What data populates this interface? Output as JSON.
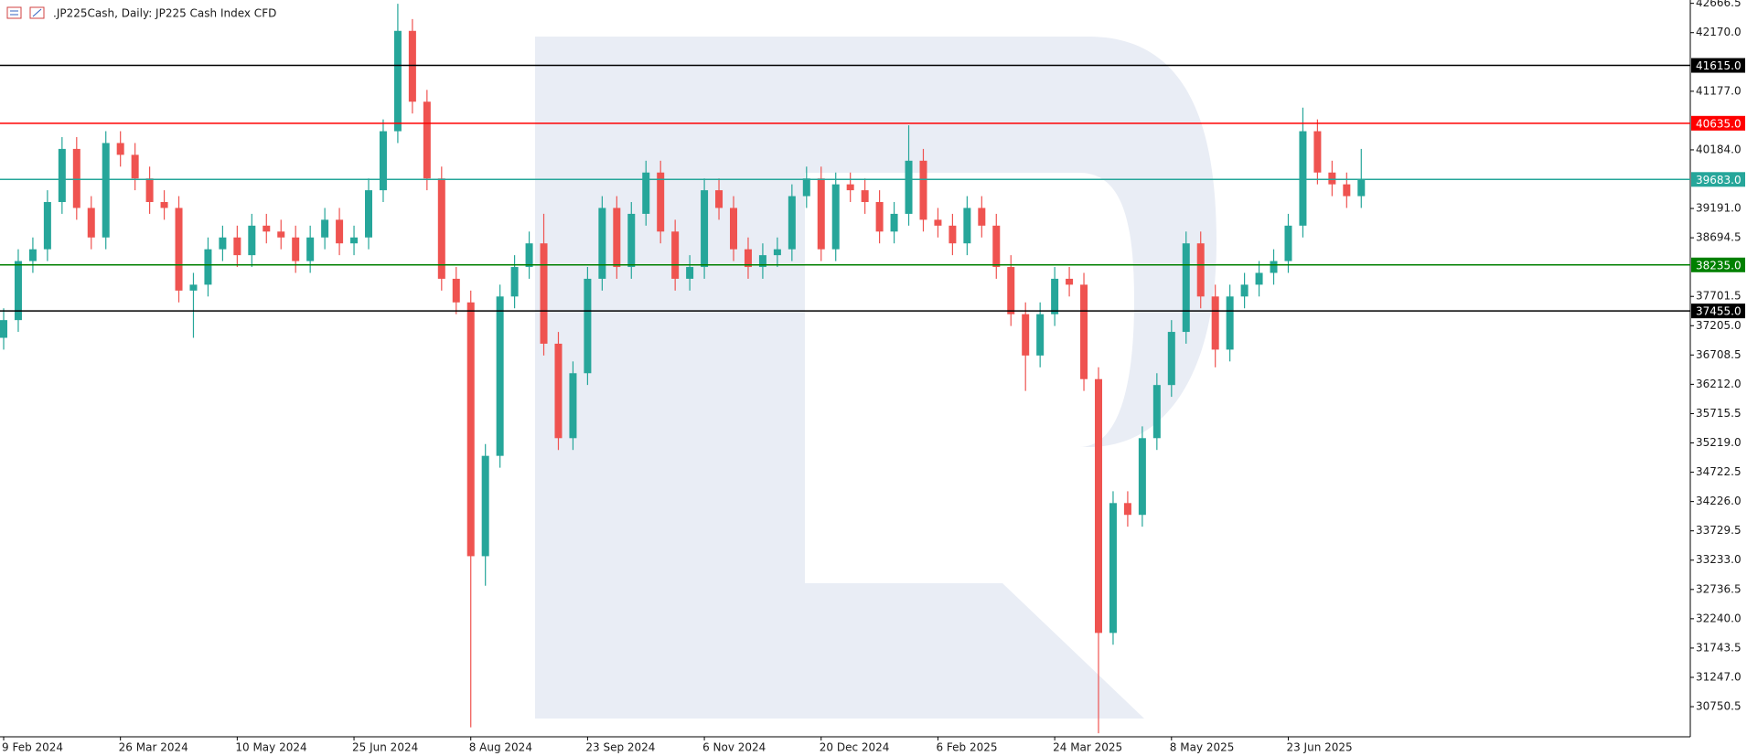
{
  "chart_data": {
    "type": "candlestick",
    "title": ".JP225Cash, Daily:  JP225 Cash Index CFD",
    "categories": [
      "9 Feb 2024",
      null,
      null,
      null,
      null,
      null,
      null,
      null,
      "26 Mar 2024",
      null,
      null,
      null,
      null,
      null,
      null,
      null,
      "10 May 2024",
      null,
      null,
      null,
      null,
      null,
      null,
      null,
      "25 Jun 2024",
      null,
      null,
      null,
      null,
      null,
      null,
      null,
      "8 Aug 2024",
      null,
      null,
      null,
      null,
      null,
      null,
      null,
      "23 Sep 2024",
      null,
      null,
      null,
      null,
      null,
      null,
      null,
      "6 Nov 2024",
      null,
      null,
      null,
      null,
      null,
      null,
      null,
      "20 Dec 2024",
      null,
      null,
      null,
      null,
      null,
      null,
      null,
      "6 Feb 2025",
      null,
      null,
      null,
      null,
      null,
      null,
      null,
      "24 Mar 2025",
      null,
      null,
      null,
      null,
      null,
      null,
      null,
      "8 May 2025",
      null,
      null,
      null,
      null,
      null,
      null,
      null,
      "23 Jun 2025",
      null,
      null,
      null,
      null,
      null
    ],
    "open": [
      37000,
      37300,
      38300,
      38500,
      39300,
      40200,
      39200,
      38700,
      40300,
      40100,
      39700,
      39300,
      39200,
      37800,
      37900,
      38500,
      38700,
      38400,
      38900,
      38800,
      38700,
      38300,
      38700,
      39000,
      38600,
      38700,
      39500,
      40500,
      42200,
      41000,
      39700,
      38000,
      37600,
      33300,
      35000,
      37700,
      38200,
      38600,
      36900,
      35300,
      36400,
      38000,
      39200,
      38200,
      39100,
      39800,
      38800,
      38000,
      38200,
      39500,
      39200,
      38500,
      38200,
      38400,
      38500,
      39400,
      39700,
      38500,
      39600,
      39500,
      39300,
      38800,
      39100,
      40000,
      39000,
      38900,
      38600,
      39200,
      38900,
      38200,
      37400,
      36700,
      37400,
      38000,
      37900,
      36300,
      32000,
      34200,
      34000,
      35300,
      36200,
      37100,
      38600,
      37700,
      36800,
      37700,
      37900,
      38100,
      38300,
      38900,
      40500,
      39800,
      39600,
      39400
    ],
    "high": [
      37500,
      38500,
      38700,
      39500,
      40400,
      40400,
      39400,
      40500,
      40500,
      40300,
      39900,
      39500,
      39400,
      38100,
      38700,
      38900,
      38900,
      39100,
      39100,
      39000,
      38900,
      38900,
      39200,
      39200,
      38900,
      39700,
      40700,
      42660,
      42400,
      41200,
      39900,
      38200,
      37800,
      35200,
      37900,
      38400,
      38800,
      39100,
      37100,
      36600,
      38200,
      39400,
      39400,
      39300,
      40000,
      40000,
      39000,
      38400,
      39700,
      39700,
      39400,
      38700,
      38600,
      38700,
      39600,
      39900,
      39900,
      39800,
      39800,
      39700,
      39500,
      39300,
      40600,
      40200,
      39200,
      39100,
      39400,
      39400,
      39100,
      38400,
      37600,
      37600,
      38200,
      38200,
      38100,
      36500,
      34400,
      34400,
      35500,
      36400,
      37300,
      38800,
      38800,
      37900,
      37900,
      38100,
      38300,
      38500,
      39100,
      40900,
      40700,
      40000,
      39800,
      40200
    ],
    "low": [
      36800,
      37100,
      38100,
      38300,
      39100,
      39000,
      38500,
      38500,
      39900,
      39500,
      39100,
      39000,
      37600,
      37000,
      37700,
      38300,
      38200,
      38200,
      38600,
      38500,
      38100,
      38100,
      38500,
      38400,
      38400,
      38500,
      39300,
      40300,
      40800,
      39500,
      37800,
      37400,
      30400,
      32800,
      34800,
      37500,
      38000,
      36700,
      35100,
      35100,
      36200,
      37800,
      38000,
      38000,
      38900,
      38600,
      37800,
      37800,
      38000,
      39000,
      38300,
      38000,
      38000,
      38200,
      38300,
      39200,
      38300,
      38300,
      39300,
      39100,
      38600,
      38600,
      38900,
      38800,
      38700,
      38400,
      38400,
      38700,
      38000,
      37200,
      36100,
      36500,
      37200,
      37700,
      36100,
      30300,
      31800,
      33800,
      33800,
      35100,
      36000,
      36900,
      37500,
      36500,
      36600,
      37500,
      37700,
      37900,
      38100,
      38700,
      39600,
      39400,
      39200,
      39200
    ],
    "close": [
      37300,
      38300,
      38500,
      39300,
      40200,
      39200,
      38700,
      40300,
      40100,
      39700,
      39300,
      39200,
      37800,
      37900,
      38500,
      38700,
      38400,
      38900,
      38800,
      38700,
      38300,
      38700,
      39000,
      38600,
      38700,
      39500,
      40500,
      42200,
      41000,
      39700,
      38000,
      37600,
      33300,
      35000,
      37700,
      38200,
      38600,
      36900,
      35300,
      36400,
      38000,
      39200,
      38200,
      39100,
      39800,
      38800,
      38000,
      38200,
      39500,
      39200,
      38500,
      38200,
      38400,
      38500,
      39400,
      39700,
      38500,
      39600,
      39500,
      39300,
      38800,
      39100,
      40000,
      39000,
      38900,
      38600,
      39200,
      38900,
      38200,
      37400,
      36700,
      37400,
      38000,
      37900,
      36300,
      32000,
      34200,
      34000,
      35300,
      36200,
      37100,
      38600,
      37700,
      36800,
      37700,
      37900,
      38100,
      38300,
      38900,
      40500,
      39800,
      39600,
      39400,
      39683
    ],
    "up_color": "#26a69a",
    "down_color": "#ef5350",
    "ylim": [
      30240,
      42723
    ],
    "yticks": [
      42666.5,
      {
        "value": 42170,
        "label": "42170.0"
      },
      {
        "value": 41177,
        "label": "41177.0"
      },
      {
        "value": 40184,
        "label": "40184.0"
      },
      {
        "value": 39191,
        "label": "39191.0"
      },
      38694.5,
      37701.5,
      {
        "value": 37205,
        "label": "37205.0"
      },
      36708.5,
      {
        "value": 36212,
        "label": "36212.0"
      },
      35715.5,
      {
        "value": 35219,
        "label": "35219.0"
      },
      34722.5,
      {
        "value": 34226,
        "label": "34226.0"
      },
      33729.5,
      {
        "value": 33233,
        "label": "33233.0"
      },
      32736.5,
      {
        "value": 32240,
        "label": "32240.0"
      },
      31743.5,
      {
        "value": 31247,
        "label": "31247.0"
      },
      30750.5
    ],
    "levels": [
      {
        "value": 41615,
        "label": "41615.0",
        "color": "#000000"
      },
      {
        "value": 40635,
        "label": "40635.0",
        "color": "#ff0000"
      },
      {
        "value": 39683,
        "label": "39683.0",
        "color": "#26a69a"
      },
      {
        "value": 38235,
        "label": "38235.0",
        "color": "#008000"
      },
      {
        "value": 37455,
        "label": "37455.0",
        "color": "#000000"
      }
    ],
    "grid": false
  }
}
